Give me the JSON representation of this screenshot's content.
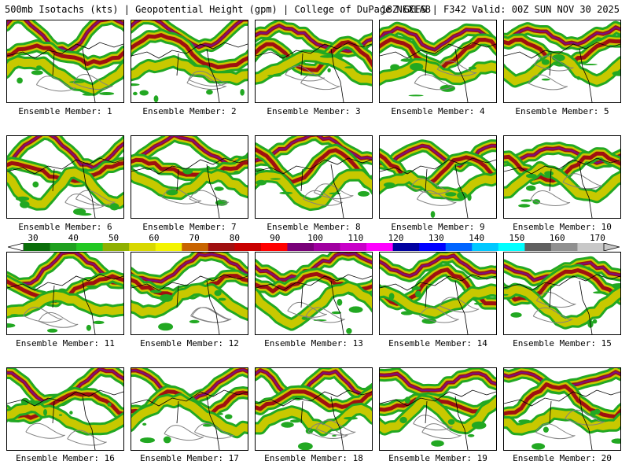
{
  "header": {
    "left": "500mb Isotachs (kts) | Geopotential Height (gpm) | College of DuPage NEXLAB",
    "right": "18Z GEFS | F342 Valid: 00Z SUN NOV 30 2025"
  },
  "members": [
    {
      "label": "Ensemble Member: 1"
    },
    {
      "label": "Ensemble Member: 2"
    },
    {
      "label": "Ensemble Member: 3"
    },
    {
      "label": "Ensemble Member: 4"
    },
    {
      "label": "Ensemble Member: 5"
    },
    {
      "label": "Ensemble Member: 6"
    },
    {
      "label": "Ensemble Member: 7"
    },
    {
      "label": "Ensemble Member: 8"
    },
    {
      "label": "Ensemble Member: 9"
    },
    {
      "label": "Ensemble Member: 10"
    },
    {
      "label": "Ensemble Member: 11"
    },
    {
      "label": "Ensemble Member: 12"
    },
    {
      "label": "Ensemble Member: 13"
    },
    {
      "label": "Ensemble Member: 14"
    },
    {
      "label": "Ensemble Member: 15"
    },
    {
      "label": "Ensemble Member: 16"
    },
    {
      "label": "Ensemble Member: 17"
    },
    {
      "label": "Ensemble Member: 18"
    },
    {
      "label": "Ensemble Member: 19"
    },
    {
      "label": "Ensemble Member: 20"
    }
  ],
  "colorbar": {
    "labels": [
      "30",
      "40",
      "50",
      "60",
      "70",
      "80",
      "90",
      "100",
      "110",
      "120",
      "130",
      "140",
      "150",
      "160",
      "170"
    ],
    "colors": [
      "#0a6e0a",
      "#1fa01f",
      "#22c822",
      "#8fb000",
      "#d8d800",
      "#f4f400",
      "#c86400",
      "#a01010",
      "#c80000",
      "#ff0000",
      "#780078",
      "#a000a0",
      "#c800c8",
      "#ff00ff",
      "#0000a0",
      "#0000ff",
      "#0064ff",
      "#00c8ff",
      "#00ffff",
      "#606060",
      "#909090",
      "#c8c8c8"
    ]
  },
  "colors": {
    "jet_weak": "#22a822",
    "jet_mid": "#c8c800",
    "jet_strong": "#a01010",
    "jet_max": "#7a1080",
    "height_contour": "#808080",
    "coastline": "#000000"
  }
}
